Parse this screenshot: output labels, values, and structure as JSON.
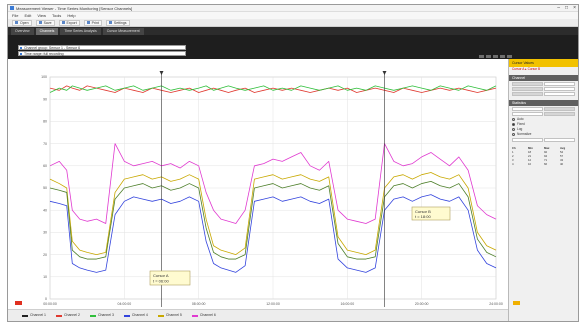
{
  "window": {
    "title": "Measurement Viewer - Time Series Monitoring [Sensor Channels]",
    "controls": [
      "–",
      "□",
      "×"
    ]
  },
  "menu": [
    "File",
    "Edit",
    "View",
    "Tools",
    "Help"
  ],
  "toolbar": [
    {
      "label": "Open",
      "icon": "folder-icon"
    },
    {
      "label": "Save",
      "icon": "save-icon"
    },
    {
      "label": "Export",
      "icon": "export-icon"
    },
    {
      "label": "Print",
      "icon": "print-icon"
    },
    {
      "label": "Settings",
      "icon": "gear-icon"
    }
  ],
  "tabs": [
    {
      "label": "Overview",
      "active": false
    },
    {
      "label": "Channels",
      "active": true
    },
    {
      "label": "Time Series Analysis",
      "active": false
    },
    {
      "label": "Cursor Measurement",
      "active": false
    }
  ],
  "selectors": [
    {
      "label": "Channel group: Sensor 1 - Sensor 6"
    },
    {
      "label": "Time range: full recording"
    }
  ],
  "side_panel": {
    "header": "Cursor Values",
    "alert": "Cursor A ▸ Cursor B",
    "section1": "Channel",
    "section2": "Statistics",
    "options": [
      {
        "label": "Auto",
        "checked": false
      },
      {
        "label": "Fixed",
        "checked": true
      },
      {
        "label": "Log",
        "checked": false
      },
      {
        "label": "Normalize",
        "checked": false
      }
    ],
    "table_head": [
      "Ch",
      "Min",
      "Max",
      "Avg"
    ],
    "table_rows": [
      [
        "1",
        "18",
        "92",
        "54"
      ],
      [
        "2",
        "21",
        "94",
        "57"
      ],
      [
        "3",
        "12",
        "71",
        "43"
      ],
      [
        "4",
        "10",
        "66",
        "40"
      ]
    ]
  },
  "annotations": [
    {
      "text": "Cursor A",
      "subtext": "t = 06:00"
    },
    {
      "text": "Cursor B",
      "subtext": "t = 18:00"
    }
  ],
  "legend": [
    {
      "name": "Channel 1",
      "color": "#222222"
    },
    {
      "name": "Channel 2",
      "color": "#e03a30"
    },
    {
      "name": "Channel 3",
      "color": "#2fbf3a"
    },
    {
      "name": "Channel 4",
      "color": "#3344dd"
    },
    {
      "name": "Channel 5",
      "color": "#c8a800"
    },
    {
      "name": "Channel 6",
      "color": "#e03ad0"
    }
  ],
  "chart_data": {
    "type": "line",
    "x_ticks": [
      "00:00:00",
      "04:00:00",
      "08:00:00",
      "12:00:00",
      "16:00:00",
      "20:00:00",
      "24:00:00"
    ],
    "y_ticks": [
      "0",
      "10",
      "20",
      "30",
      "40",
      "50",
      "60",
      "70",
      "80",
      "90",
      "100"
    ],
    "ylim": [
      0,
      100
    ],
    "grid": true,
    "cursor_x": [
      6,
      18
    ],
    "x_hours": [
      0,
      0.5,
      0.9,
      1.2,
      1.6,
      2.0,
      2.5,
      3.0,
      3.5,
      4.0,
      4.5,
      5.0,
      5.5,
      6.0,
      6.5,
      7.0,
      7.5,
      8.0,
      8.4,
      8.8,
      9.2,
      9.6,
      10.0,
      10.5,
      11.0,
      11.5,
      12.0,
      12.5,
      13.0,
      13.5,
      14.0,
      14.5,
      15.0,
      15.5,
      16.0,
      16.5,
      17.0,
      17.5,
      18.0,
      18.5,
      19.0,
      19.5,
      20.0,
      20.5,
      21.0,
      21.5,
      22.0,
      22.5,
      23.0,
      23.5,
      24.0
    ],
    "series": [
      {
        "color": "#e03a30",
        "values": [
          95,
          94,
          96,
          95,
          94,
          96,
          95,
          94,
          93,
          95,
          94,
          93,
          95,
          94,
          93,
          94,
          95,
          93,
          94,
          95,
          94,
          93,
          94,
          95,
          93,
          94,
          95,
          94,
          95,
          94,
          93,
          94,
          95,
          94,
          95,
          93,
          94,
          95,
          94,
          93,
          95,
          94,
          93,
          94,
          95,
          94,
          95,
          94,
          93,
          94,
          95
        ]
      },
      {
        "color": "#2fbf3a",
        "values": [
          93,
          95,
          94,
          96,
          95,
          94,
          95,
          96,
          94,
          95,
          96,
          94,
          95,
          96,
          94,
          95,
          94,
          95,
          96,
          94,
          95,
          96,
          95,
          94,
          95,
          96,
          94,
          95,
          94,
          96,
          95,
          94,
          95,
          96,
          94,
          95,
          94,
          96,
          95,
          94,
          95,
          96,
          95,
          94,
          96,
          95,
          94,
          96,
          95,
          94,
          96
        ]
      },
      {
        "color": "#e03ad0",
        "values": [
          60,
          62,
          58,
          40,
          36,
          35,
          36,
          34,
          70,
          62,
          60,
          61,
          62,
          60,
          61,
          59,
          62,
          60,
          48,
          40,
          36,
          35,
          34,
          40,
          60,
          61,
          63,
          62,
          64,
          66,
          60,
          58,
          62,
          40,
          36,
          35,
          34,
          36,
          70,
          62,
          60,
          61,
          64,
          66,
          63,
          60,
          64,
          58,
          42,
          38,
          36
        ]
      },
      {
        "color": "#c8a800",
        "values": [
          54,
          52,
          50,
          26,
          22,
          21,
          20,
          21,
          48,
          54,
          55,
          56,
          54,
          55,
          53,
          54,
          56,
          54,
          36,
          24,
          22,
          21,
          20,
          23,
          54,
          55,
          56,
          54,
          55,
          56,
          54,
          53,
          55,
          28,
          22,
          21,
          20,
          22,
          50,
          55,
          56,
          54,
          56,
          57,
          55,
          54,
          56,
          50,
          30,
          24,
          22
        ]
      },
      {
        "color": "#4d7f2a",
        "values": [
          50,
          49,
          48,
          22,
          19,
          18,
          18,
          19,
          45,
          50,
          51,
          52,
          50,
          51,
          49,
          50,
          52,
          50,
          32,
          21,
          19,
          18,
          18,
          20,
          50,
          51,
          52,
          50,
          51,
          52,
          50,
          49,
          51,
          25,
          19,
          18,
          18,
          19,
          46,
          51,
          52,
          50,
          52,
          53,
          51,
          50,
          52,
          46,
          27,
          21,
          19
        ]
      },
      {
        "color": "#3344dd",
        "values": [
          44,
          43,
          42,
          16,
          14,
          13,
          12,
          13,
          38,
          44,
          46,
          45,
          44,
          45,
          43,
          44,
          46,
          44,
          26,
          16,
          14,
          13,
          12,
          15,
          44,
          45,
          46,
          44,
          45,
          46,
          44,
          43,
          45,
          18,
          14,
          13,
          12,
          14,
          40,
          45,
          46,
          44,
          46,
          47,
          45,
          44,
          46,
          40,
          22,
          16,
          14
        ]
      }
    ]
  }
}
